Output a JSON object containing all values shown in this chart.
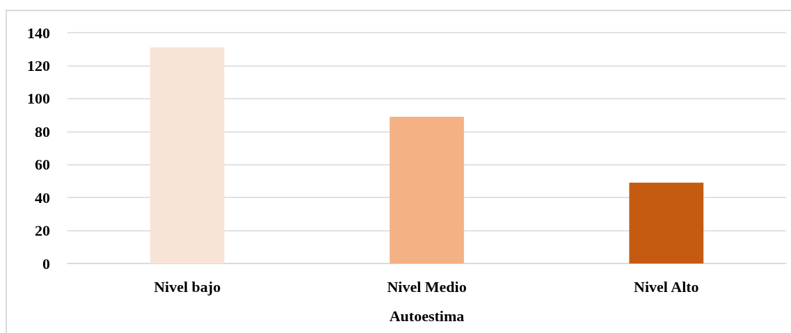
{
  "chart_data": {
    "type": "bar",
    "xlabel": "Autoestima",
    "categories": [
      "Nivel bajo",
      "Nivel Medio",
      "Nivel Alto"
    ],
    "values": [
      131,
      89,
      49
    ],
    "colors": [
      "#f8e4d6",
      "#f4b183",
      "#c55a11"
    ],
    "ylim": [
      0,
      140
    ],
    "yticks": [
      0,
      20,
      40,
      60,
      80,
      100,
      120,
      140
    ],
    "grid": "y"
  }
}
